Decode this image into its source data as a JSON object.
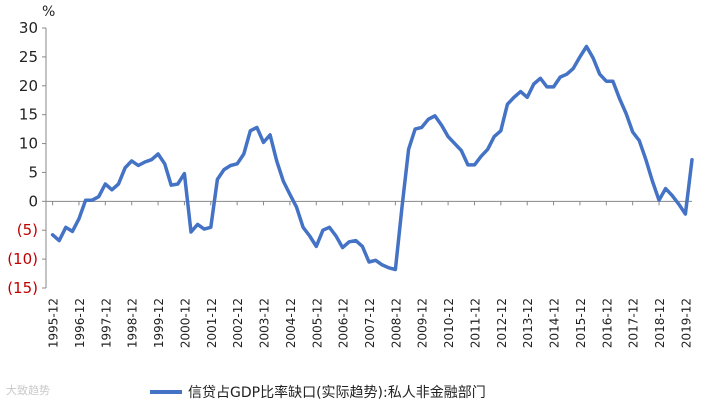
{
  "chart_data": {
    "type": "line",
    "unit_label": "%",
    "ylim": [
      -15,
      30
    ],
    "yticks": [
      {
        "value": 30,
        "label": "30"
      },
      {
        "value": 25,
        "label": "25"
      },
      {
        "value": 20,
        "label": "20"
      },
      {
        "value": 15,
        "label": "15"
      },
      {
        "value": 10,
        "label": "10"
      },
      {
        "value": 5,
        "label": "5"
      },
      {
        "value": 0,
        "label": "0"
      },
      {
        "value": -5,
        "label": "(5)"
      },
      {
        "value": -10,
        "label": "(10)"
      },
      {
        "value": -15,
        "label": "(15)"
      }
    ],
    "xlim": [
      "1995-09",
      "2020-03"
    ],
    "xticks": [
      "1995-12",
      "1996-12",
      "1997-12",
      "1998-12",
      "1999-12",
      "2000-12",
      "2001-12",
      "2002-12",
      "2003-12",
      "2004-12",
      "2005-12",
      "2006-12",
      "2007-12",
      "2008-12",
      "2009-12",
      "2010-12",
      "2011-12",
      "2012-12",
      "2013-12",
      "2014-12",
      "2015-12",
      "2016-12",
      "2017-12",
      "2018-12",
      "2019-12"
    ],
    "negative_tick_color": "#c00000",
    "grid": false,
    "legend_position": "bottom",
    "series": [
      {
        "name": "信贷占GDP比率缺口(实际趋势):私人非金融部门",
        "color": "#4472c4",
        "points": [
          [
            "1995-12",
            -5.8
          ],
          [
            "1996-03",
            -6.8
          ],
          [
            "1996-06",
            -4.5
          ],
          [
            "1996-09",
            -5.2
          ],
          [
            "1996-12",
            -3.0
          ],
          [
            "1997-03",
            0.2
          ],
          [
            "1997-06",
            0.2
          ],
          [
            "1997-09",
            0.8
          ],
          [
            "1997-12",
            3.0
          ],
          [
            "1998-03",
            2.0
          ],
          [
            "1998-06",
            3.0
          ],
          [
            "1998-09",
            5.8
          ],
          [
            "1998-12",
            7.0
          ],
          [
            "1999-03",
            6.2
          ],
          [
            "1999-06",
            6.8
          ],
          [
            "1999-09",
            7.2
          ],
          [
            "1999-12",
            8.2
          ],
          [
            "2000-03",
            6.5
          ],
          [
            "2000-06",
            2.8
          ],
          [
            "2000-09",
            3.0
          ],
          [
            "2000-12",
            4.8
          ],
          [
            "2001-03",
            -5.3
          ],
          [
            "2001-06",
            -4.0
          ],
          [
            "2001-09",
            -4.8
          ],
          [
            "2001-12",
            -4.5
          ],
          [
            "2002-03",
            3.8
          ],
          [
            "2002-06",
            5.5
          ],
          [
            "2002-09",
            6.2
          ],
          [
            "2002-12",
            6.5
          ],
          [
            "2003-03",
            8.2
          ],
          [
            "2003-06",
            12.2
          ],
          [
            "2003-09",
            12.8
          ],
          [
            "2003-12",
            10.2
          ],
          [
            "2004-03",
            11.5
          ],
          [
            "2004-06",
            7.0
          ],
          [
            "2004-09",
            3.5
          ],
          [
            "2004-12",
            1.2
          ],
          [
            "2005-03",
            -1.0
          ],
          [
            "2005-06",
            -4.5
          ],
          [
            "2005-09",
            -6.0
          ],
          [
            "2005-12",
            -7.8
          ],
          [
            "2006-03",
            -5.0
          ],
          [
            "2006-06",
            -4.5
          ],
          [
            "2006-09",
            -6.0
          ],
          [
            "2006-12",
            -8.0
          ],
          [
            "2007-03",
            -7.0
          ],
          [
            "2007-06",
            -6.8
          ],
          [
            "2007-09",
            -7.8
          ],
          [
            "2007-12",
            -10.5
          ],
          [
            "2008-03",
            -10.2
          ],
          [
            "2008-06",
            -11.0
          ],
          [
            "2008-09",
            -11.5
          ],
          [
            "2008-12",
            -11.8
          ],
          [
            "2009-03",
            -1.0
          ],
          [
            "2009-06",
            9.0
          ],
          [
            "2009-09",
            12.5
          ],
          [
            "2009-12",
            12.8
          ],
          [
            "2010-03",
            14.2
          ],
          [
            "2010-06",
            14.8
          ],
          [
            "2010-09",
            13.2
          ],
          [
            "2010-12",
            11.2
          ],
          [
            "2011-03",
            10.0
          ],
          [
            "2011-06",
            8.8
          ],
          [
            "2011-09",
            6.3
          ],
          [
            "2011-12",
            6.3
          ],
          [
            "2012-03",
            7.8
          ],
          [
            "2012-06",
            9.0
          ],
          [
            "2012-09",
            11.2
          ],
          [
            "2012-12",
            12.2
          ],
          [
            "2013-03",
            16.8
          ],
          [
            "2013-06",
            18.0
          ],
          [
            "2013-09",
            19.0
          ],
          [
            "2013-12",
            18.0
          ],
          [
            "2014-03",
            20.3
          ],
          [
            "2014-06",
            21.3
          ],
          [
            "2014-09",
            19.8
          ],
          [
            "2014-12",
            19.8
          ],
          [
            "2015-03",
            21.5
          ],
          [
            "2015-06",
            22.0
          ],
          [
            "2015-09",
            23.0
          ],
          [
            "2015-12",
            25.0
          ],
          [
            "2016-03",
            26.8
          ],
          [
            "2016-06",
            24.8
          ],
          [
            "2016-09",
            22.0
          ],
          [
            "2016-12",
            20.8
          ],
          [
            "2017-03",
            20.8
          ],
          [
            "2017-06",
            17.8
          ],
          [
            "2017-09",
            15.2
          ],
          [
            "2017-12",
            12.0
          ],
          [
            "2018-03",
            10.5
          ],
          [
            "2018-06",
            7.2
          ],
          [
            "2018-09",
            3.5
          ],
          [
            "2018-12",
            0.2
          ],
          [
            "2019-03",
            2.2
          ],
          [
            "2019-06",
            1.0
          ],
          [
            "2019-09",
            -0.5
          ],
          [
            "2019-12",
            -2.2
          ],
          [
            "2020-03",
            7.2
          ]
        ]
      }
    ]
  },
  "watermark": "大致趋势"
}
